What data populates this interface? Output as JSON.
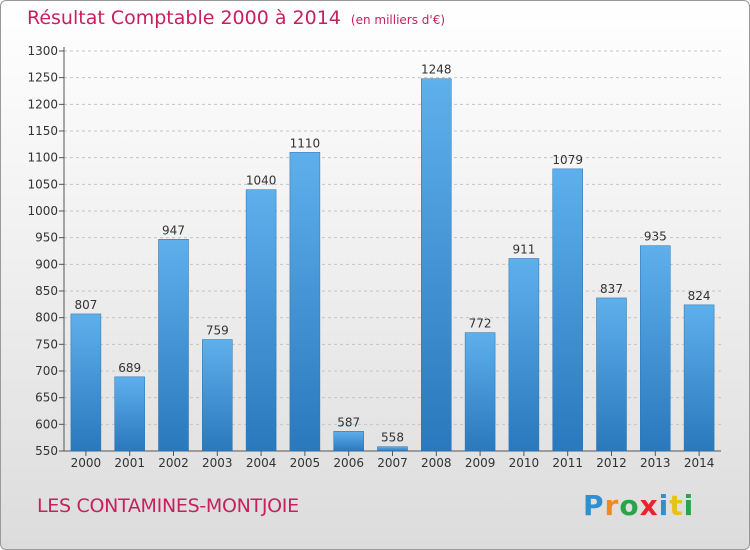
{
  "chart_data": {
    "type": "bar",
    "title": "Résultat Comptable 2000 à 2014",
    "subtitle": "(en milliers d'€)",
    "categories": [
      "2000",
      "2001",
      "2002",
      "2003",
      "2004",
      "2005",
      "2006",
      "2007",
      "2008",
      "2009",
      "2010",
      "2011",
      "2012",
      "2013",
      "2014"
    ],
    "values": [
      807,
      689,
      947,
      759,
      1040,
      1110,
      587,
      558,
      1248,
      772,
      911,
      1079,
      837,
      935,
      824
    ],
    "ylim": [
      550,
      1300
    ],
    "yticks": [
      550,
      600,
      650,
      700,
      750,
      800,
      850,
      900,
      950,
      1000,
      1050,
      1100,
      1150,
      1200,
      1250,
      1300
    ],
    "xlabel": "",
    "ylabel": "",
    "grid": true,
    "bar_color": "#3d8fd6"
  },
  "commune": "LES CONTAMINES-MONTJOIE",
  "logo": {
    "letters": [
      "P",
      "r",
      "o",
      "x",
      "i",
      "t",
      "i"
    ],
    "colors": [
      "#2f8fd4",
      "#f08a1c",
      "#2aa34a",
      "#e8242a",
      "#2f8fd4",
      "#e8c21c",
      "#2aa34a"
    ]
  }
}
